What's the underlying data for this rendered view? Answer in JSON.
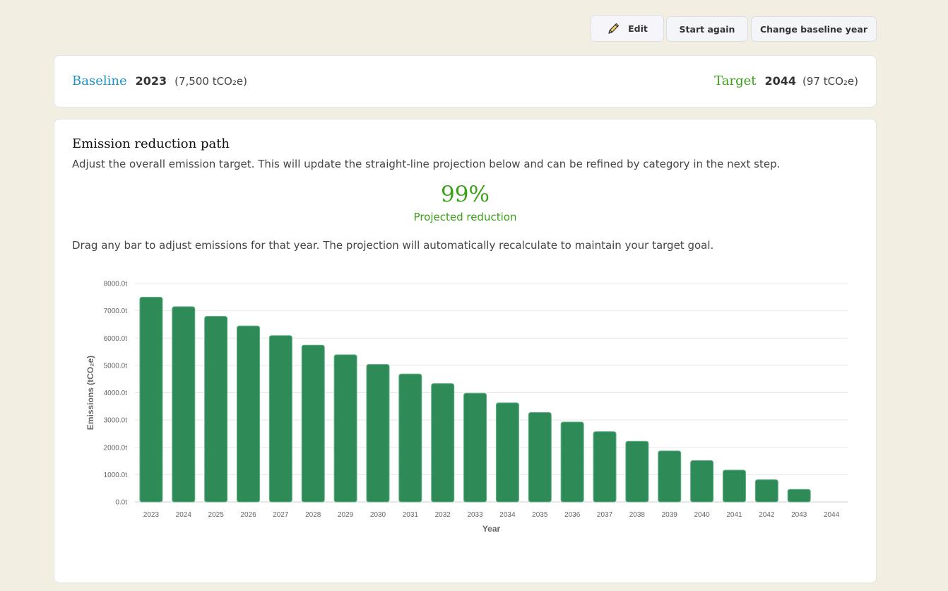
{
  "toolbar": {
    "edit_label": "Edit",
    "start_again_label": "Start again",
    "change_baseline_label": "Change baseline year"
  },
  "summary": {
    "baseline_label": "Baseline",
    "baseline_year": "2023",
    "baseline_amount": "(7,500 tCO₂e)",
    "target_label": "Target",
    "target_year": "2044",
    "target_amount": "(97 tCO₂e)"
  },
  "main": {
    "title": "Emission reduction path",
    "description": "Adjust the overall emission target. This will update the straight-line projection below and can be refined by category in the next step.",
    "reduction_value": "99%",
    "reduction_label": "Projected reduction",
    "drag_note": "Drag any bar to adjust emissions for that year. The projection will automatically recalculate to maintain your target goal."
  },
  "chart_data": {
    "type": "bar",
    "categories": [
      "2023",
      "2024",
      "2025",
      "2026",
      "2027",
      "2028",
      "2029",
      "2030",
      "2031",
      "2032",
      "2033",
      "2034",
      "2035",
      "2036",
      "2037",
      "2038",
      "2039",
      "2040",
      "2041",
      "2042",
      "2043",
      "2044"
    ],
    "values": [
      7500,
      7148,
      6796,
      6444,
      6092,
      5740,
      5388,
      5036,
      4684,
      4332,
      3980,
      3628,
      3276,
      2924,
      2572,
      2220,
      1868,
      1516,
      1164,
      812,
      460,
      97
    ],
    "xlabel": "Year",
    "ylabel": "Emissions (tCO₂e)",
    "ylim": [
      0,
      8000
    ],
    "yticks": [
      "0.0t",
      "1000.0t",
      "2000.0t",
      "3000.0t",
      "4000.0t",
      "5000.0t",
      "6000.0t",
      "7000.0t",
      "8000.0t"
    ],
    "bar_color": "#2e8b57",
    "grid": true
  }
}
